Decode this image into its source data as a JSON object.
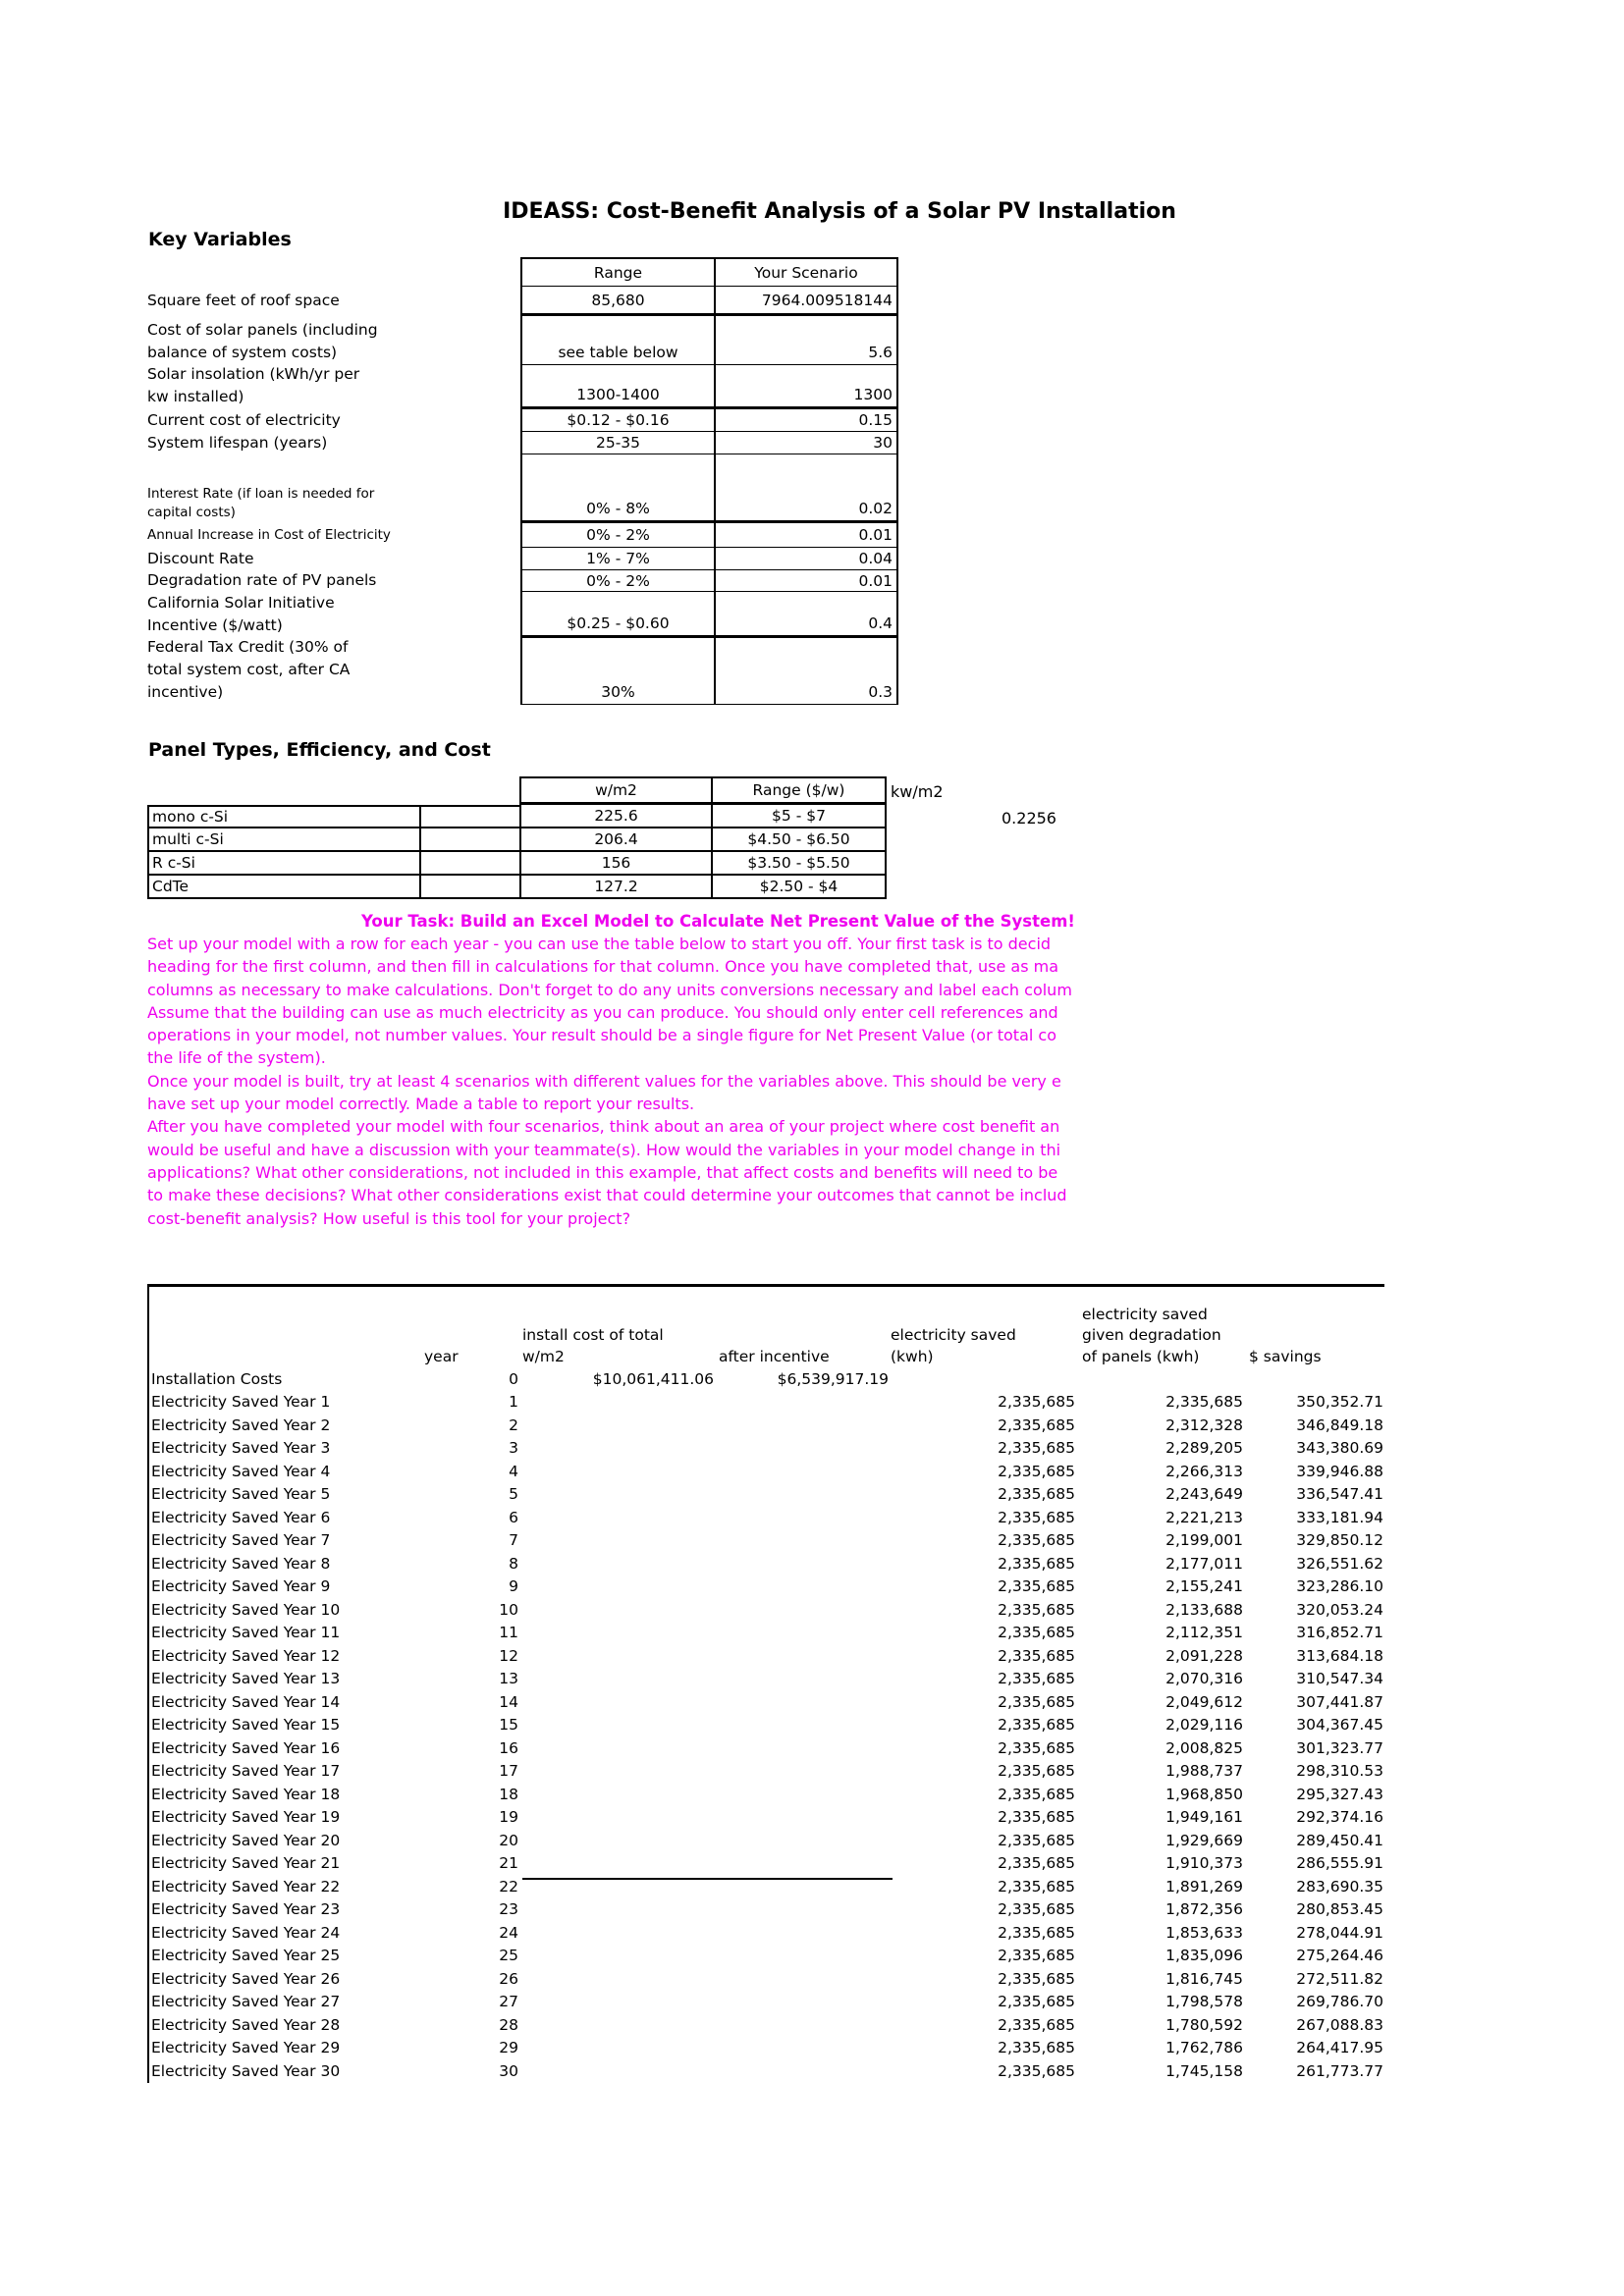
{
  "title": "IDEASS: Cost-Benefit Analysis of a Solar PV Installation",
  "colors": {
    "task_text": "#EE00EE",
    "border": "#000000",
    "background": "#FFFFFF"
  },
  "key_variables": {
    "heading": "Key Variables",
    "columns": [
      "Range",
      "Your Scenario"
    ],
    "rows": [
      {
        "label": "Square feet of roof space",
        "range": "85,680",
        "scenario": "7964.009518144"
      },
      {
        "label": "Cost of solar panels (including\nbalance of system costs)",
        "range": "see table below",
        "scenario": "5.6"
      },
      {
        "label": "Solar insolation (kWh/yr per\nkw installed)",
        "range": "1300-1400",
        "scenario": "1300"
      },
      {
        "label": "Current cost of electricity",
        "range": "$0.12 - $0.16",
        "scenario": "0.15"
      },
      {
        "label": "System lifespan (years)",
        "range": "25-35",
        "scenario": "30"
      },
      {
        "label": "Interest Rate (if loan is needed for\ncapital costs)",
        "range": "0% - 8%",
        "scenario": "0.02"
      },
      {
        "label": "Annual Increase in Cost of Electricity",
        "range": "0% - 2%",
        "scenario": "0.01"
      },
      {
        "label": "Discount Rate",
        "range": "1% - 7%",
        "scenario": "0.04"
      },
      {
        "label": "Degradation rate of PV panels",
        "range": "0% - 2%",
        "scenario": "0.01"
      },
      {
        "label": "California Solar Initiative\nIncentive ($/watt)",
        "range": "$0.25 - $0.60",
        "scenario": "0.4"
      },
      {
        "label": "Federal Tax Credit (30% of\ntotal system cost, after CA\nincentive)",
        "range": "30%",
        "scenario": "0.3"
      }
    ]
  },
  "panel_table": {
    "heading": "Panel Types, Efficiency, and Cost",
    "columns": [
      "w/m2",
      "Range ($/w)"
    ],
    "unit_label": "kw/m2",
    "conversion_value": "0.2256",
    "rows": [
      {
        "label": "mono c-Si",
        "wm2": "225.6",
        "range": "$5 - $7"
      },
      {
        "label": "multi c-Si",
        "wm2": "206.4",
        "range": "$4.50 - $6.50"
      },
      {
        "label": "R c-Si",
        "wm2": "156",
        "range": "$3.50 - $5.50"
      },
      {
        "label": "CdTe",
        "wm2": "127.2",
        "range": "$2.50 - $4"
      }
    ]
  },
  "task": {
    "heading": "Your Task: Build an Excel Model to Calculate Net Present Value of the System!",
    "lines": [
      "Set up your model with a row for each year - you can use the table below to start you off. Your first task is to decid",
      "heading for the first column, and then fill in calculations for that column. Once you have completed that, use as ma",
      "columns as necessary to make calculations. Don't forget to do any units conversions necessary and label each colum",
      "Assume that the building can use as much electricity as you can produce. You should only enter cell references and",
      "operations in your model, not number values. Your result should be a single figure for Net Present Value (or total co",
      "the life of the system).",
      "Once your model is built, try at least 4 scenarios with different values for the variables above. This should be very e",
      "have set up your model correctly. Made a table to report your results.",
      "After you have completed your model with four scenarios, think about an area of your project where cost benefit an",
      "would be useful and have a discussion with your teammate(s). How would the variables in your model change in thi",
      "applications? What other considerations, not included in this example, that affect costs and benefits will need to be",
      "to make these decisions? What other considerations exist that could determine your outcomes that cannot be includ",
      "cost-benefit analysis? How useful is this tool for your project?"
    ]
  },
  "npv_table": {
    "column_headers": {
      "label": "",
      "year": "year",
      "install": "install cost of total\nw/m2",
      "incentive": "after incentive",
      "kwh": "electricity saved\n(kwh)",
      "degradation": "electricity saved\ngiven degradation\nof panels (kwh)",
      "savings": "$ savings"
    },
    "installation_row": {
      "label": "Installation Costs",
      "year": "0",
      "install": "$10,061,411.06",
      "incentive": "$6,539,917.19"
    },
    "year_rows": [
      {
        "label": "Electricity Saved Year 1",
        "year": "1",
        "kwh": "2,335,685",
        "degradation": "2,335,685",
        "savings": "350,352.71"
      },
      {
        "label": "Electricity Saved Year 2",
        "year": "2",
        "kwh": "2,335,685",
        "degradation": "2,312,328",
        "savings": "346,849.18"
      },
      {
        "label": "Electricity Saved Year 3",
        "year": "3",
        "kwh": "2,335,685",
        "degradation": "2,289,205",
        "savings": "343,380.69"
      },
      {
        "label": "Electricity Saved Year 4",
        "year": "4",
        "kwh": "2,335,685",
        "degradation": "2,266,313",
        "savings": "339,946.88"
      },
      {
        "label": "Electricity Saved Year 5",
        "year": "5",
        "kwh": "2,335,685",
        "degradation": "2,243,649",
        "savings": "336,547.41"
      },
      {
        "label": "Electricity Saved Year 6",
        "year": "6",
        "kwh": "2,335,685",
        "degradation": "2,221,213",
        "savings": "333,181.94"
      },
      {
        "label": "Electricity Saved Year 7",
        "year": "7",
        "kwh": "2,335,685",
        "degradation": "2,199,001",
        "savings": "329,850.12"
      },
      {
        "label": "Electricity Saved Year 8",
        "year": "8",
        "kwh": "2,335,685",
        "degradation": "2,177,011",
        "savings": "326,551.62"
      },
      {
        "label": "Electricity Saved Year 9",
        "year": "9",
        "kwh": "2,335,685",
        "degradation": "2,155,241",
        "savings": "323,286.10"
      },
      {
        "label": "Electricity Saved Year 10",
        "year": "10",
        "kwh": "2,335,685",
        "degradation": "2,133,688",
        "savings": "320,053.24"
      },
      {
        "label": "Electricity Saved Year 11",
        "year": "11",
        "kwh": "2,335,685",
        "degradation": "2,112,351",
        "savings": "316,852.71"
      },
      {
        "label": "Electricity Saved Year 12",
        "year": "12",
        "kwh": "2,335,685",
        "degradation": "2,091,228",
        "savings": "313,684.18"
      },
      {
        "label": "Electricity Saved Year 13",
        "year": "13",
        "kwh": "2,335,685",
        "degradation": "2,070,316",
        "savings": "310,547.34"
      },
      {
        "label": "Electricity Saved Year 14",
        "year": "14",
        "kwh": "2,335,685",
        "degradation": "2,049,612",
        "savings": "307,441.87"
      },
      {
        "label": "Electricity Saved Year 15",
        "year": "15",
        "kwh": "2,335,685",
        "degradation": "2,029,116",
        "savings": "304,367.45"
      },
      {
        "label": "Electricity Saved Year 16",
        "year": "16",
        "kwh": "2,335,685",
        "degradation": "2,008,825",
        "savings": "301,323.77"
      },
      {
        "label": "Electricity Saved Year 17",
        "year": "17",
        "kwh": "2,335,685",
        "degradation": "1,988,737",
        "savings": "298,310.53"
      },
      {
        "label": "Electricity Saved Year 18",
        "year": "18",
        "kwh": "2,335,685",
        "degradation": "1,968,850",
        "savings": "295,327.43"
      },
      {
        "label": "Electricity Saved Year 19",
        "year": "19",
        "kwh": "2,335,685",
        "degradation": "1,949,161",
        "savings": "292,374.16"
      },
      {
        "label": "Electricity Saved Year 20",
        "year": "20",
        "kwh": "2,335,685",
        "degradation": "1,929,669",
        "savings": "289,450.41"
      },
      {
        "label": "Electricity Saved Year 21",
        "year": "21",
        "kwh": "2,335,685",
        "degradation": "1,910,373",
        "savings": "286,555.91"
      },
      {
        "label": "Electricity Saved Year 22",
        "year": "22",
        "kwh": "2,335,685",
        "degradation": "1,891,269",
        "savings": "283,690.35"
      },
      {
        "label": "Electricity Saved Year 23",
        "year": "23",
        "kwh": "2,335,685",
        "degradation": "1,872,356",
        "savings": "280,853.45"
      },
      {
        "label": "Electricity Saved Year 24",
        "year": "24",
        "kwh": "2,335,685",
        "degradation": "1,853,633",
        "savings": "278,044.91"
      },
      {
        "label": "Electricity Saved Year 25",
        "year": "25",
        "kwh": "2,335,685",
        "degradation": "1,835,096",
        "savings": "275,264.46"
      },
      {
        "label": "Electricity Saved Year 26",
        "year": "26",
        "kwh": "2,335,685",
        "degradation": "1,816,745",
        "savings": "272,511.82"
      },
      {
        "label": "Electricity Saved Year 27",
        "year": "27",
        "kwh": "2,335,685",
        "degradation": "1,798,578",
        "savings": "269,786.70"
      },
      {
        "label": "Electricity Saved Year 28",
        "year": "28",
        "kwh": "2,335,685",
        "degradation": "1,780,592",
        "savings": "267,088.83"
      },
      {
        "label": "Electricity Saved Year 29",
        "year": "29",
        "kwh": "2,335,685",
        "degradation": "1,762,786",
        "savings": "264,417.95"
      },
      {
        "label": "Electricity Saved Year 30",
        "year": "30",
        "kwh": "2,335,685",
        "degradation": "1,745,158",
        "savings": "261,773.77"
      }
    ]
  }
}
